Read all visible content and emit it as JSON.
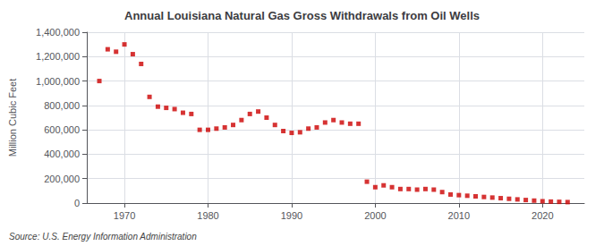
{
  "chart_data": {
    "type": "scatter",
    "title": "Annual Louisiana Natural Gas Gross Withdrawals from Oil Wells",
    "ylabel": "Million Cubic Feet",
    "annotation": "Source: U.S. Energy Information Administration",
    "color": "#cc0000",
    "marker": "square",
    "grid": true,
    "xlim": [
      1965.5,
      2025
    ],
    "xticks": [
      1970,
      1980,
      1990,
      2000,
      2010,
      2020
    ],
    "ylim": [
      0,
      1400000
    ],
    "yticks": [
      0,
      {
        "value": 200000,
        "label": "200,000"
      },
      {
        "value": 400000,
        "label": "400,000"
      },
      {
        "value": 600000,
        "label": "600,000"
      },
      {
        "value": 800000,
        "label": "800,000"
      },
      {
        "value": 1000000,
        "label": "1,000,000"
      },
      {
        "value": 1200000,
        "label": "1,200,000"
      },
      {
        "value": 1400000,
        "label": "1,400,000"
      }
    ],
    "x": [
      1967,
      1968,
      1969,
      1970,
      1971,
      1972,
      1973,
      1974,
      1975,
      1976,
      1977,
      1978,
      1979,
      1980,
      1981,
      1982,
      1983,
      1984,
      1985,
      1986,
      1987,
      1988,
      1989,
      1990,
      1991,
      1992,
      1993,
      1994,
      1995,
      1996,
      1997,
      1998,
      1999,
      2000,
      2001,
      2002,
      2003,
      2004,
      2005,
      2006,
      2007,
      2008,
      2009,
      2010,
      2011,
      2012,
      2013,
      2014,
      2015,
      2016,
      2017,
      2018,
      2019,
      2020,
      2021,
      2022,
      2023
    ],
    "values": [
      1000000,
      1260000,
      1240000,
      1300000,
      1220000,
      1140000,
      870000,
      790000,
      780000,
      770000,
      740000,
      730000,
      600000,
      600000,
      610000,
      620000,
      640000,
      680000,
      730000,
      750000,
      700000,
      640000,
      590000,
      575000,
      580000,
      610000,
      620000,
      660000,
      680000,
      660000,
      650000,
      650000,
      175000,
      130000,
      145000,
      130000,
      115000,
      115000,
      110000,
      115000,
      110000,
      90000,
      70000,
      65000,
      60000,
      55000,
      50000,
      45000,
      40000,
      35000,
      30000,
      25000,
      20000,
      15000,
      12000,
      10000,
      8000
    ]
  }
}
